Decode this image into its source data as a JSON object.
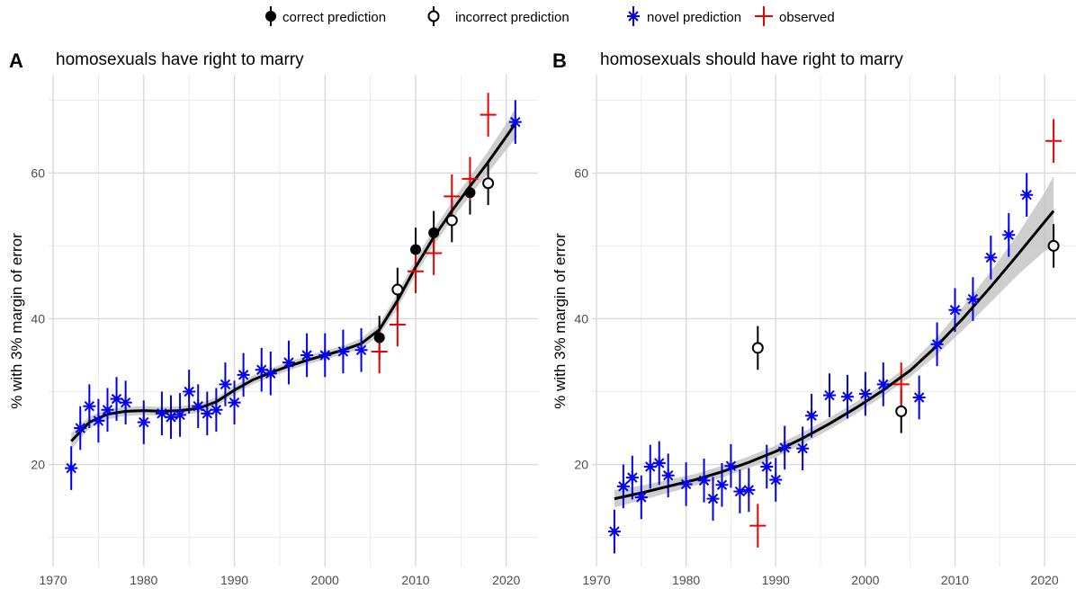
{
  "legend": {
    "items": [
      {
        "key": "correct",
        "label": "correct prediction",
        "color": "#000000"
      },
      {
        "key": "incorrect",
        "label": "incorrect prediction",
        "color": "#000000"
      },
      {
        "key": "novel",
        "label": "novel prediction",
        "color": "#0000EE"
      },
      {
        "key": "observed",
        "label": "observed",
        "color": "#EE0000"
      }
    ]
  },
  "colors": {
    "novel": "#0000EE",
    "observed": "#EE0000",
    "prediction": "#000000",
    "band": "#bdbdbd",
    "grid_major": "#d9d9d9",
    "grid_minor": "#ebebeb"
  },
  "chart_data": [
    {
      "type": "scatter",
      "panel_label": "A",
      "title": "homosexuals have right to marry",
      "ylabel": "% with 3% margin of error",
      "xlabel": "",
      "xlim": [
        1969.5,
        2023.5
      ],
      "ylim": [
        6,
        73.5
      ],
      "xticks": [
        1970,
        1980,
        1990,
        2000,
        2010,
        2020
      ],
      "yticks": [
        20,
        40,
        60
      ],
      "grid": true,
      "series": [
        {
          "name": "novel prediction",
          "marker": "asterisk",
          "points": [
            [
              1972,
              19.5
            ],
            [
              1973,
              25
            ],
            [
              1974,
              28
            ],
            [
              1975,
              26
            ],
            [
              1976,
              27.5
            ],
            [
              1977,
              29
            ],
            [
              1978,
              28.5
            ],
            [
              1980,
              25.8
            ],
            [
              1982,
              27
            ],
            [
              1983,
              26.5
            ],
            [
              1984,
              26.8
            ],
            [
              1985,
              30
            ],
            [
              1986,
              28
            ],
            [
              1987,
              27
            ],
            [
              1988,
              27.5
            ],
            [
              1989,
              31
            ],
            [
              1990,
              28.5
            ],
            [
              1991,
              32.3
            ],
            [
              1993,
              33
            ],
            [
              1994,
              32.5
            ],
            [
              1996,
              34
            ],
            [
              1998,
              35
            ],
            [
              2000,
              35
            ],
            [
              2002,
              35.5
            ],
            [
              2004,
              35.7
            ],
            [
              2021,
              67
            ]
          ]
        },
        {
          "name": "correct prediction",
          "marker": "filled-circle",
          "points": [
            [
              2006,
              37.4
            ],
            [
              2010,
              49.5
            ],
            [
              2012,
              51.8
            ],
            [
              2016,
              57.3
            ]
          ]
        },
        {
          "name": "incorrect prediction",
          "marker": "open-circle",
          "points": [
            [
              2008,
              44
            ],
            [
              2014,
              53.5
            ],
            [
              2018,
              58.6
            ]
          ]
        },
        {
          "name": "observed",
          "marker": "plus",
          "points": [
            [
              2006,
              35.5
            ],
            [
              2008,
              39.2
            ],
            [
              2010,
              46.5
            ],
            [
              2012,
              49
            ],
            [
              2014,
              56.8
            ],
            [
              2016,
              59.2
            ],
            [
              2018,
              68
            ]
          ]
        }
      ],
      "trend": {
        "x": [
          1972,
          1974,
          1976,
          1978,
          1980,
          1982,
          1984,
          1986,
          1988,
          1990,
          1992,
          1994,
          1996,
          1998,
          2000,
          2002,
          2004,
          2006,
          2008,
          2010,
          2012,
          2014,
          2016,
          2018,
          2020,
          2021
        ],
        "y": [
          23.2,
          25.8,
          26.9,
          27.3,
          27.4,
          27.3,
          27.4,
          27.7,
          28.6,
          30.2,
          31.6,
          32.6,
          33.5,
          34.3,
          35,
          35.7,
          36.6,
          38.5,
          42.5,
          47.1,
          51.2,
          54.8,
          58.2,
          61.5,
          65,
          66.8
        ],
        "band_width": [
          1.1,
          0.8,
          0.7,
          0.6,
          0.6,
          0.6,
          0.6,
          0.6,
          0.6,
          0.6,
          0.6,
          0.6,
          0.6,
          0.6,
          0.6,
          0.6,
          0.7,
          0.8,
          1.0,
          1.1,
          1.1,
          1.2,
          1.3,
          1.5,
          1.8,
          2.1
        ]
      }
    },
    {
      "type": "scatter",
      "panel_label": "B",
      "title": "homosexuals should have right to marry",
      "ylabel": "% with 3% margin of error",
      "xlabel": "",
      "xlim": [
        1969.5,
        2023.5
      ],
      "ylim": [
        6,
        73.5
      ],
      "xticks": [
        1970,
        1980,
        1990,
        2000,
        2010,
        2020
      ],
      "yticks": [
        20,
        40,
        60
      ],
      "grid": true,
      "series": [
        {
          "name": "novel prediction",
          "marker": "asterisk",
          "points": [
            [
              1972,
              10.8
            ],
            [
              1973,
              17
            ],
            [
              1974,
              18.2
            ],
            [
              1975,
              15.5
            ],
            [
              1976,
              19.7
            ],
            [
              1977,
              20.2
            ],
            [
              1978,
              18.5
            ],
            [
              1980,
              17.3
            ],
            [
              1982,
              17.8
            ],
            [
              1983,
              15.3
            ],
            [
              1984,
              17.2
            ],
            [
              1985,
              19.8
            ],
            [
              1986,
              16.3
            ],
            [
              1987,
              16.5
            ],
            [
              1989,
              19.7
            ],
            [
              1990,
              17.9
            ],
            [
              1991,
              22.3
            ],
            [
              1993,
              22.2
            ],
            [
              1994,
              26.7
            ],
            [
              1996,
              29.5
            ],
            [
              1998,
              29.3
            ],
            [
              2000,
              29.7
            ],
            [
              2002,
              31
            ],
            [
              2006,
              29.2
            ],
            [
              2008,
              36.5
            ],
            [
              2010,
              41.2
            ],
            [
              2012,
              42.7
            ],
            [
              2014,
              48.4
            ],
            [
              2016,
              51.5
            ],
            [
              2018,
              57
            ]
          ]
        },
        {
          "name": "incorrect prediction",
          "marker": "open-circle",
          "points": [
            [
              1988,
              36
            ],
            [
              2004,
              27.3
            ],
            [
              2021,
              50
            ]
          ]
        },
        {
          "name": "observed",
          "marker": "plus",
          "points": [
            [
              1988,
              11.6
            ],
            [
              2004,
              31
            ],
            [
              2021,
              64.4
            ]
          ]
        }
      ],
      "trend": {
        "x": [
          1972,
          1975,
          1978,
          1981,
          1984,
          1987,
          1990,
          1993,
          1996,
          1999,
          2002,
          2005,
          2008,
          2011,
          2014,
          2017,
          2020,
          2021
        ],
        "y": [
          15.3,
          16.1,
          17,
          17.9,
          19,
          20.3,
          21.8,
          23.6,
          25.6,
          27.8,
          30.2,
          32.9,
          36.3,
          40.2,
          44.4,
          48.8,
          53.3,
          54.8
        ],
        "band_width": [
          1.2,
          1,
          0.9,
          0.8,
          0.8,
          0.8,
          0.8,
          0.8,
          0.8,
          0.8,
          0.8,
          0.9,
          1.2,
          1.6,
          2.1,
          2.8,
          4,
          4.8
        ]
      }
    }
  ]
}
